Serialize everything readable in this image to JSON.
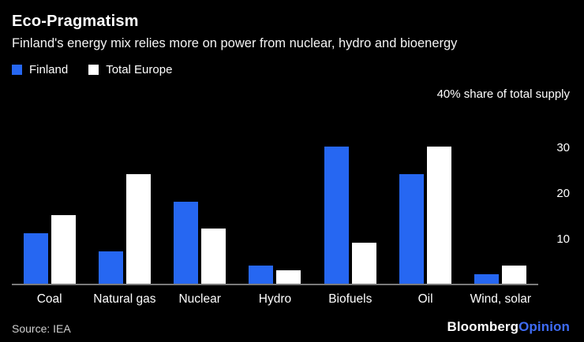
{
  "header": {
    "title": "Eco-Pragmatism",
    "subtitle": "Finland's energy mix relies more on power from nuclear, hydro and bioenergy"
  },
  "legend": {
    "items": [
      {
        "label": "Finland",
        "color": "#2667F2"
      },
      {
        "label": "Total Europe",
        "color": "#FFFFFF"
      }
    ]
  },
  "colors": {
    "background": "#000000",
    "finland": "#2667F2",
    "europe": "#FFFFFF",
    "axis_line": "#7A7A7A",
    "logo_accent": "#3E6BF4"
  },
  "chart_data": {
    "type": "bar",
    "title": "Eco-Pragmatism",
    "subtitle": "Finland's energy mix relies more on power from nuclear, hydro and bioenergy",
    "y_top_label": "40% share of total supply",
    "categories": [
      "Coal",
      "Natural gas",
      "Nuclear",
      "Hydro",
      "Biofuels",
      "Oil",
      "Wind, solar"
    ],
    "series": [
      {
        "name": "Finland",
        "color": "#2667F2",
        "values": [
          11,
          7,
          18,
          4,
          30,
          24,
          2
        ]
      },
      {
        "name": "Total Europe",
        "color": "#FFFFFF",
        "values": [
          15,
          24,
          12,
          3,
          9,
          30,
          4
        ]
      }
    ],
    "ylim": [
      0,
      40
    ],
    "yticks": [
      10,
      20,
      30
    ],
    "grid": false,
    "legend_position": "top-left"
  },
  "footer": {
    "source": "Source: IEA",
    "logo_bold": "Bloomberg",
    "logo_accent": "Opinion"
  }
}
